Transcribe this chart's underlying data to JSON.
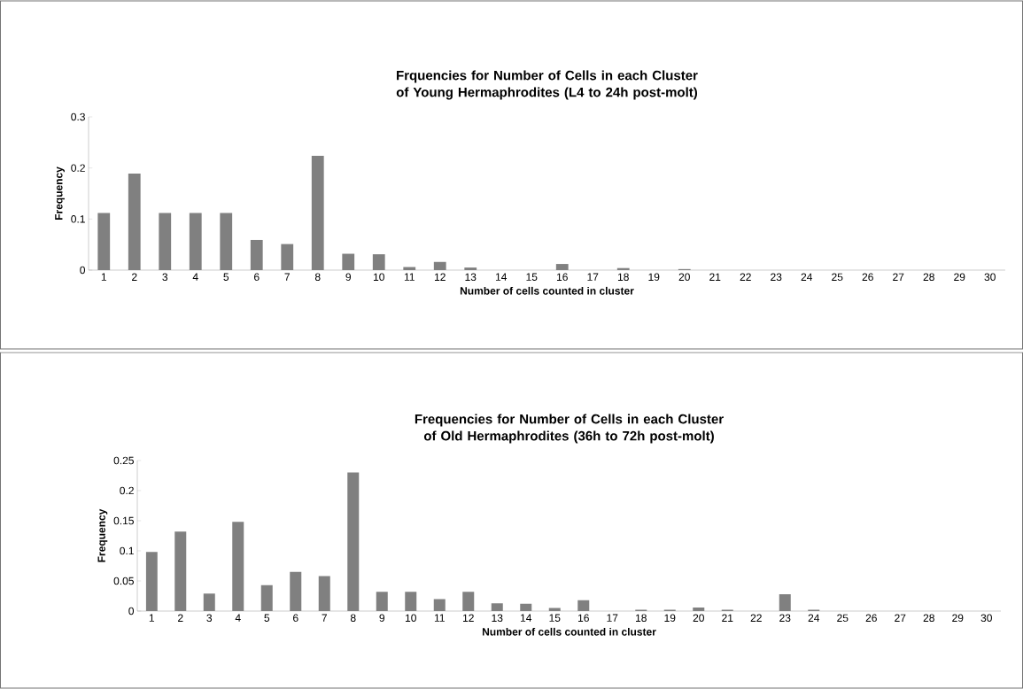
{
  "chart_data": [
    {
      "type": "bar",
      "title": "Frquencies for Number of Cells in each Cluster of Young Hermaphrodites (L4 to 24h post-molt)",
      "xlabel": "Number of cells counted in cluster",
      "ylabel": "Frequency",
      "categories": [
        "1",
        "2",
        "3",
        "4",
        "5",
        "6",
        "7",
        "8",
        "9",
        "10",
        "11",
        "12",
        "13",
        "14",
        "15",
        "16",
        "17",
        "18",
        "19",
        "20",
        "21",
        "22",
        "23",
        "24",
        "25",
        "26",
        "27",
        "28",
        "29",
        "30"
      ],
      "values": [
        0.112,
        0.189,
        0.112,
        0.112,
        0.112,
        0.059,
        0.051,
        0.224,
        0.032,
        0.031,
        0.006,
        0.016,
        0.005,
        0,
        0,
        0.012,
        0,
        0.004,
        0,
        0.002,
        0,
        0,
        0,
        0,
        0,
        0,
        0,
        0,
        0,
        0
      ],
      "color": "#808080",
      "ylim": [
        0,
        0.3
      ],
      "yticks": [
        0,
        0.1,
        0.2,
        0.3
      ]
    },
    {
      "type": "bar",
      "title": "Frequencies for Number of Cells in each Cluster of Old Hermaphrodites (36h to 72h post-molt)",
      "xlabel": "Number of cells counted  in cluster",
      "ylabel": "Frequency",
      "categories": [
        "1",
        "2",
        "3",
        "4",
        "5",
        "6",
        "7",
        "8",
        "9",
        "10",
        "11",
        "12",
        "13",
        "14",
        "15",
        "16",
        "17",
        "18",
        "19",
        "20",
        "21",
        "22",
        "23",
        "24",
        "25",
        "26",
        "27",
        "28",
        "29",
        "30"
      ],
      "values": [
        0.098,
        0.132,
        0.029,
        0.148,
        0.043,
        0.065,
        0.058,
        0.23,
        0.032,
        0.032,
        0.02,
        0.032,
        0.013,
        0.012,
        0.005,
        0.018,
        0,
        0.002,
        0.002,
        0.006,
        0.002,
        0,
        0.028,
        0.002,
        0,
        0,
        0,
        0,
        0,
        0
      ],
      "color": "#808080",
      "ylim": [
        0,
        0.25
      ],
      "yticks": [
        0,
        0.05,
        0.1,
        0.15,
        0.2,
        0.25
      ]
    }
  ]
}
